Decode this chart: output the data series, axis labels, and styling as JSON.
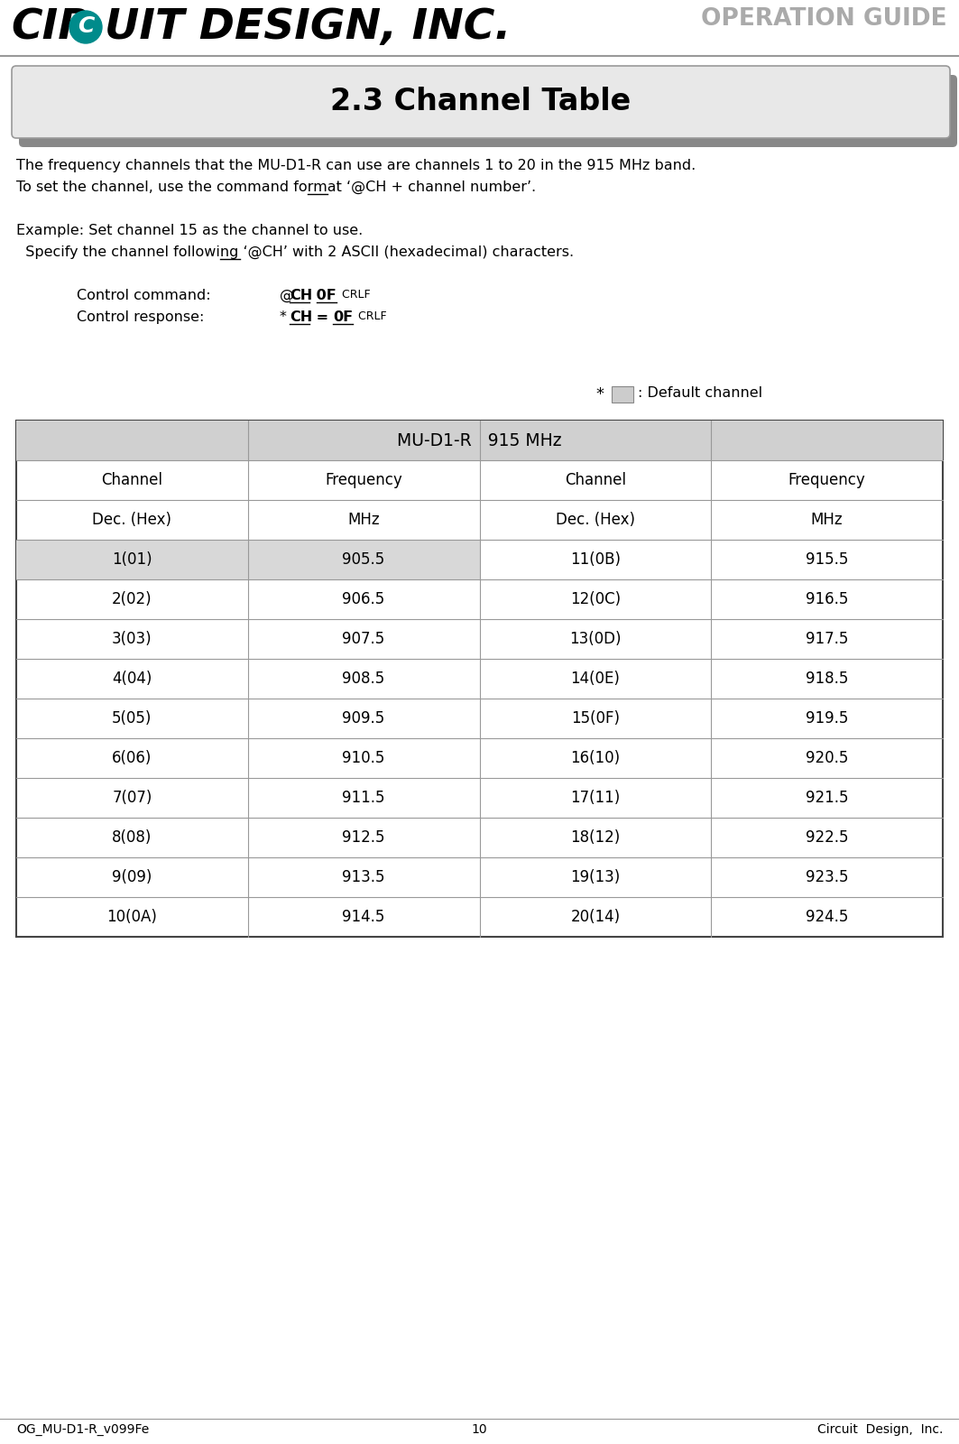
{
  "title": "2.3 Channel Table",
  "page_bg": "#ffffff",
  "logo_cir": "CIR",
  "logo_uit": "UIT DESIGN, INC.",
  "operation_guide_text": "OPERATION GUIDE",
  "footer_left": "OG_MU-D1-R_v099Fe",
  "footer_center": "10",
  "footer_right": "Circuit  Design,  Inc.",
  "body_line1": "The frequency channels that the MU-D1-R can use are channels 1 to 20 in the 915 MHz band.",
  "body_line2": "To set the channel, use the command format ‘@CH + channel number’.",
  "body_line3": "Example: Set channel 15 as the channel to use.",
  "body_line4": "  Specify the channel following ‘@CH’ with 2 ASCII (hexadecimal) characters.",
  "ctrl_cmd_label": "Control command:",
  "ctrl_resp_label": "Control response:",
  "table_title": "MU-D1-R   915 MHz",
  "col_headers": [
    "Channel",
    "Frequency",
    "Channel",
    "Frequency"
  ],
  "col_subheaders": [
    "Dec. (Hex)",
    "MHz",
    "Dec. (Hex)",
    "MHz"
  ],
  "table_data": [
    [
      "1(01)",
      "905.5",
      "11(0B)",
      "915.5"
    ],
    [
      "2(02)",
      "906.5",
      "12(0C)",
      "916.5"
    ],
    [
      "3(03)",
      "907.5",
      "13(0D)",
      "917.5"
    ],
    [
      "4(04)",
      "908.5",
      "14(0E)",
      "918.5"
    ],
    [
      "5(05)",
      "909.5",
      "15(0F)",
      "919.5"
    ],
    [
      "6(06)",
      "910.5",
      "16(10)",
      "920.5"
    ],
    [
      "7(07)",
      "911.5",
      "17(11)",
      "921.5"
    ],
    [
      "8(08)",
      "912.5",
      "18(12)",
      "922.5"
    ],
    [
      "9(09)",
      "913.5",
      "19(13)",
      "923.5"
    ],
    [
      "10(0A)",
      "914.5",
      "20(14)",
      "924.5"
    ]
  ],
  "highlight_color": "#d8d8d8",
  "table_title_bg": "#d0d0d0",
  "table_border_color": "#444444",
  "table_line_color": "#999999",
  "text_color": "#000000",
  "teal_color": "#008B8B",
  "gray_line": "#999999",
  "op_guide_color": "#aaaaaa",
  "shadow_color": "#888888",
  "title_box_bg": "#e8e8e8",
  "title_box_border": "#999999"
}
